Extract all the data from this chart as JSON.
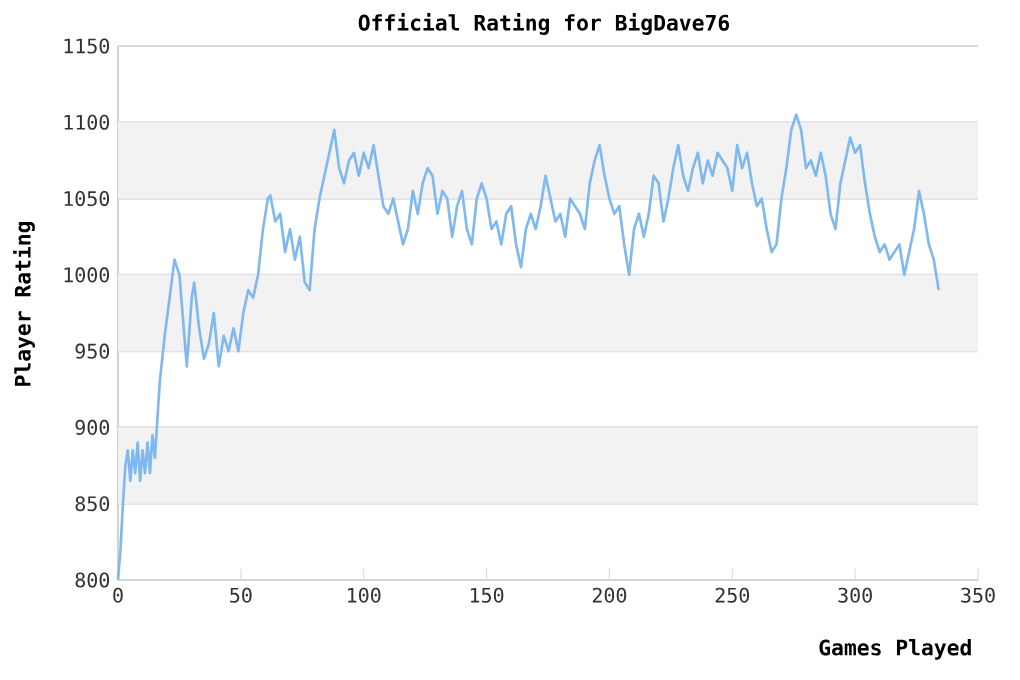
{
  "chart_data": {
    "type": "line",
    "title": "Official Rating for BigDave76",
    "xlabel": "Games Played",
    "ylabel": "Player Rating",
    "xlim": [
      0,
      350
    ],
    "xticks": [
      0,
      50,
      100,
      150,
      200,
      250,
      300,
      350
    ],
    "ylim": [
      800,
      1150
    ],
    "yticks": [
      800,
      850,
      900,
      950,
      1000,
      1050,
      1100,
      1150
    ],
    "grid": "y",
    "marker": "none",
    "line_style": "solid",
    "series": [
      {
        "color": "#80b8f0",
        "x": [
          0,
          1,
          2,
          3,
          4,
          5,
          6,
          7,
          8,
          9,
          10,
          11,
          12,
          13,
          14,
          15,
          16,
          17,
          19,
          21,
          23,
          25,
          27,
          28,
          30,
          31,
          33,
          35,
          37,
          39,
          41,
          43,
          45,
          47,
          49,
          51,
          53,
          55,
          57,
          59,
          61,
          62,
          64,
          66,
          68,
          70,
          72,
          74,
          76,
          78,
          80,
          82,
          84,
          86,
          88,
          90,
          92,
          94,
          96,
          98,
          100,
          102,
          104,
          106,
          108,
          110,
          112,
          114,
          116,
          118,
          120,
          122,
          124,
          126,
          128,
          130,
          132,
          134,
          136,
          138,
          140,
          142,
          144,
          146,
          148,
          150,
          152,
          154,
          156,
          158,
          160,
          162,
          164,
          166,
          168,
          170,
          172,
          174,
          176,
          178,
          180,
          182,
          184,
          186,
          188,
          190,
          192,
          194,
          196,
          198,
          200,
          202,
          204,
          206,
          208,
          210,
          212,
          214,
          216,
          218,
          220,
          222,
          224,
          226,
          228,
          230,
          232,
          234,
          236,
          238,
          240,
          242,
          244,
          246,
          248,
          250,
          252,
          254,
          256,
          258,
          260,
          262,
          264,
          266,
          268,
          270,
          272,
          274,
          276,
          278,
          280,
          282,
          284,
          286,
          288,
          290,
          292,
          294,
          296,
          298,
          300,
          302,
          304,
          306,
          308,
          310,
          312,
          314,
          316,
          318,
          320,
          322,
          324,
          326,
          328,
          330,
          332,
          334
        ],
        "values": [
          800,
          820,
          850,
          875,
          885,
          865,
          885,
          870,
          890,
          865,
          885,
          870,
          890,
          870,
          895,
          880,
          905,
          930,
          960,
          985,
          1010,
          1000,
          960,
          940,
          985,
          995,
          965,
          945,
          955,
          975,
          940,
          960,
          950,
          965,
          950,
          975,
          990,
          985,
          1000,
          1030,
          1050,
          1052,
          1035,
          1040,
          1015,
          1030,
          1010,
          1025,
          995,
          990,
          1030,
          1050,
          1065,
          1080,
          1095,
          1070,
          1060,
          1075,
          1080,
          1065,
          1080,
          1070,
          1085,
          1065,
          1045,
          1040,
          1050,
          1035,
          1020,
          1030,
          1055,
          1040,
          1060,
          1070,
          1065,
          1040,
          1055,
          1050,
          1025,
          1045,
          1055,
          1030,
          1020,
          1050,
          1060,
          1050,
          1030,
          1035,
          1020,
          1040,
          1045,
          1020,
          1005,
          1030,
          1040,
          1030,
          1045,
          1065,
          1050,
          1035,
          1040,
          1025,
          1050,
          1045,
          1040,
          1030,
          1060,
          1075,
          1085,
          1065,
          1050,
          1040,
          1045,
          1020,
          1000,
          1030,
          1040,
          1025,
          1040,
          1065,
          1060,
          1035,
          1050,
          1070,
          1085,
          1065,
          1055,
          1070,
          1080,
          1060,
          1075,
          1065,
          1080,
          1075,
          1070,
          1055,
          1085,
          1070,
          1080,
          1060,
          1045,
          1050,
          1030,
          1015,
          1020,
          1050,
          1070,
          1095,
          1105,
          1095,
          1070,
          1075,
          1065,
          1080,
          1065,
          1040,
          1030,
          1060,
          1075,
          1090,
          1080,
          1085,
          1060,
          1040,
          1025,
          1015,
          1020,
          1010,
          1015,
          1020,
          1000,
          1015,
          1030,
          1055,
          1040,
          1020,
          1010,
          990
        ]
      }
    ]
  }
}
